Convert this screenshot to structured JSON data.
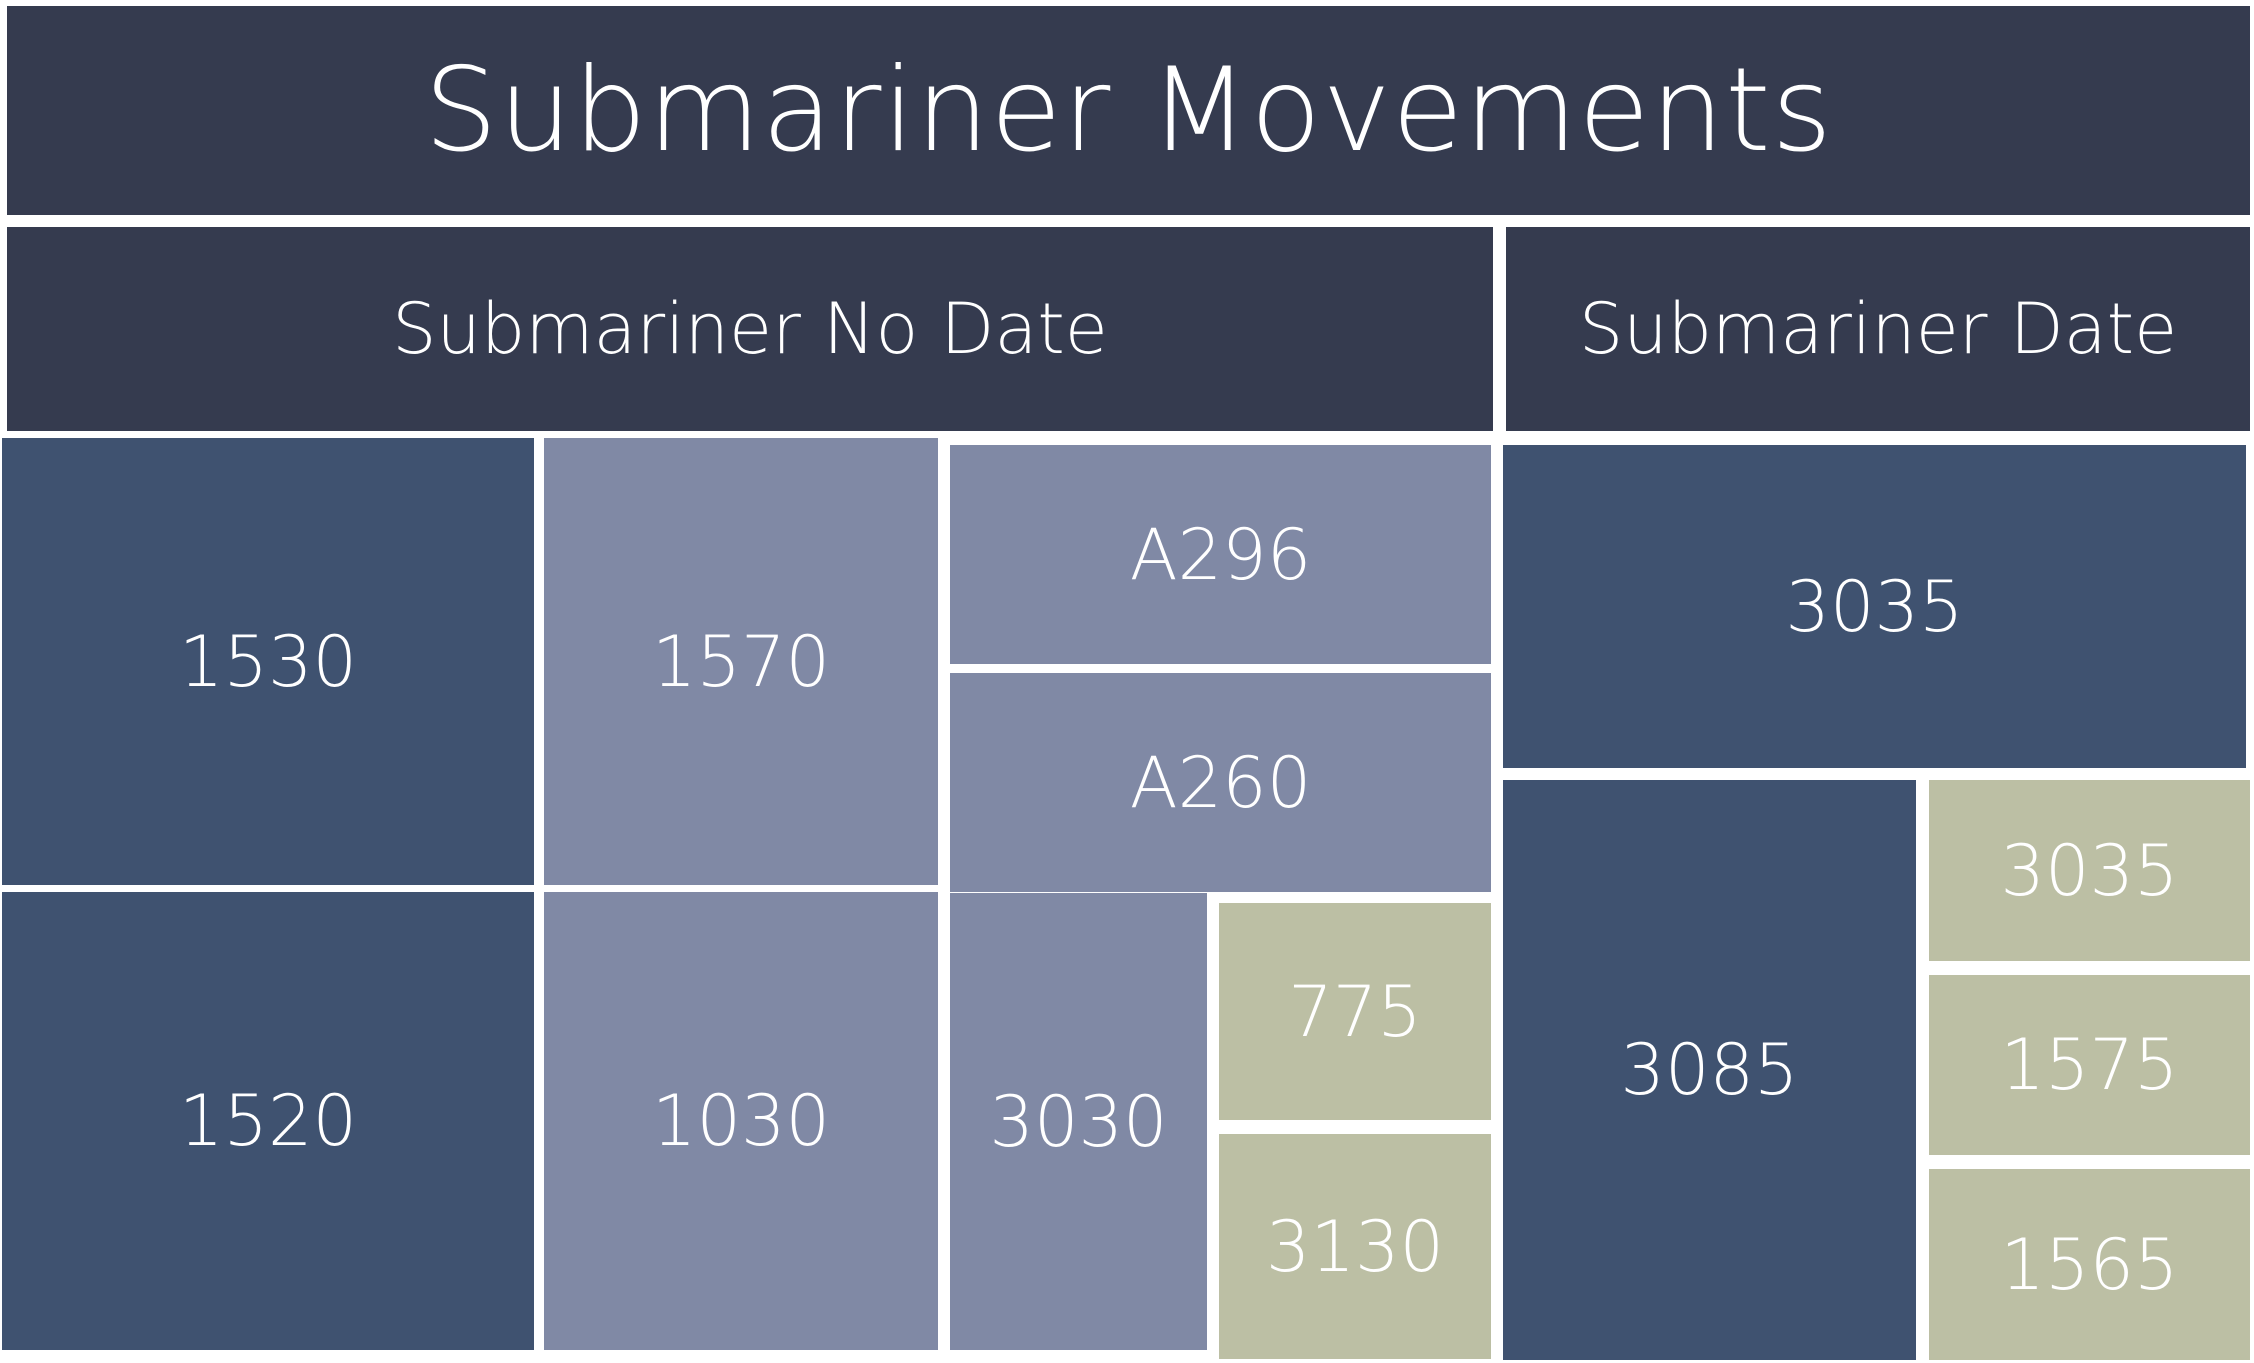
{
  "title": "Submariner Movements",
  "groups": {
    "no_date": {
      "label": "Submariner No Date",
      "items": {
        "m1530": "1530",
        "m1570": "1570",
        "a296": "A296",
        "a260": "A260",
        "m1520": "1520",
        "m1030": "1030",
        "m3030": "3030",
        "m775": "775",
        "m3130": "3130"
      }
    },
    "date": {
      "label": "Submariner Date",
      "items": {
        "m3035_top": "3035",
        "m3085": "3085",
        "m3035_small": "3035",
        "m1575": "1575",
        "m1565": "1565"
      }
    }
  },
  "colors": {
    "header": "#353b4f",
    "navy": "#3f5270",
    "slate": "#8089a5",
    "sage": "#bcbfa4"
  }
}
